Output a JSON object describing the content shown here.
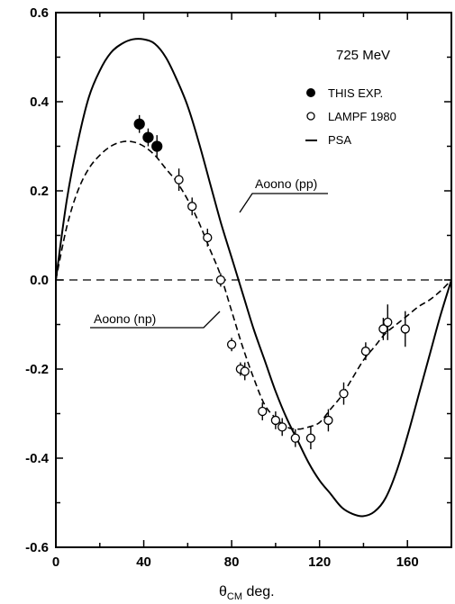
{
  "chart_data": {
    "type": "line",
    "title": "",
    "xlabel_main": "θ",
    "xlabel_sub": "CM",
    "xlabel_unit": "deg.",
    "ylabel": "",
    "xlim": [
      0,
      180
    ],
    "ylim": [
      -0.6,
      0.6
    ],
    "x_ticks": [
      {
        "value": 0,
        "label": "0"
      },
      {
        "value": 40,
        "label": "40"
      },
      {
        "value": 80,
        "label": "80"
      },
      {
        "value": 120,
        "label": "120"
      },
      {
        "value": 160,
        "label": "160"
      }
    ],
    "y_ticks": [
      {
        "value": 0.6,
        "label": "0.6"
      },
      {
        "value": 0.4,
        "label": "0.4"
      },
      {
        "value": 0.2,
        "label": "0.2"
      },
      {
        "value": 0.0,
        "label": "0.0"
      },
      {
        "value": -0.2,
        "label": "-0.2"
      },
      {
        "value": -0.4,
        "label": "-0.4"
      },
      {
        "value": -0.6,
        "label": "-0.6"
      }
    ],
    "legend": {
      "title": "725 MeV",
      "entries": [
        {
          "marker": "filled-circle",
          "label": "THIS EXP."
        },
        {
          "marker": "open-circle",
          "label": "LAMPF 1980"
        },
        {
          "marker": "line",
          "label": "PSA"
        }
      ]
    },
    "curve_labels": {
      "pp": "Aoono (pp)",
      "np": "Aoono (np)"
    },
    "series": [
      {
        "name": "PSA",
        "style": "solid",
        "x": [
          0,
          5,
          10,
          15,
          20,
          25,
          30,
          35,
          40,
          45,
          50,
          55,
          60,
          65,
          70,
          75,
          80,
          85,
          90,
          95,
          100,
          105,
          110,
          115,
          120,
          125,
          130,
          135,
          140,
          145,
          150,
          155,
          160,
          165,
          170,
          175,
          180
        ],
        "y": [
          0.0,
          0.18,
          0.31,
          0.41,
          0.47,
          0.51,
          0.53,
          0.54,
          0.54,
          0.53,
          0.5,
          0.45,
          0.39,
          0.31,
          0.22,
          0.13,
          0.05,
          -0.03,
          -0.11,
          -0.18,
          -0.25,
          -0.31,
          -0.36,
          -0.41,
          -0.45,
          -0.48,
          -0.51,
          -0.525,
          -0.53,
          -0.52,
          -0.49,
          -0.43,
          -0.35,
          -0.26,
          -0.17,
          -0.08,
          0.0
        ]
      },
      {
        "name": "",
        "style": "dashed",
        "x": [
          0,
          5,
          10,
          15,
          20,
          25,
          30,
          35,
          40,
          45,
          50,
          55,
          60,
          65,
          70,
          75,
          80,
          85,
          90,
          95,
          100,
          105,
          110,
          115,
          120,
          125,
          130,
          135,
          140,
          145,
          150,
          155,
          160,
          165,
          170,
          175,
          180
        ],
        "y": [
          0.0,
          0.12,
          0.2,
          0.25,
          0.28,
          0.3,
          0.31,
          0.31,
          0.3,
          0.28,
          0.25,
          0.22,
          0.18,
          0.13,
          0.07,
          0.01,
          -0.07,
          -0.15,
          -0.22,
          -0.28,
          -0.31,
          -0.33,
          -0.335,
          -0.33,
          -0.32,
          -0.29,
          -0.26,
          -0.22,
          -0.18,
          -0.15,
          -0.12,
          -0.1,
          -0.08,
          -0.06,
          -0.045,
          -0.025,
          0.0
        ]
      },
      {
        "name": "THIS EXP.",
        "style": "filled-markers",
        "points": [
          {
            "x": 38,
            "y": 0.35,
            "err": 0.02
          },
          {
            "x": 42,
            "y": 0.32,
            "err": 0.02
          },
          {
            "x": 46,
            "y": 0.3,
            "err": 0.025
          }
        ]
      },
      {
        "name": "LAMPF 1980",
        "style": "open-markers",
        "points": [
          {
            "x": 56,
            "y": 0.225,
            "err": 0.025
          },
          {
            "x": 62,
            "y": 0.165,
            "err": 0.02
          },
          {
            "x": 69,
            "y": 0.095,
            "err": 0.02
          },
          {
            "x": 75,
            "y": 0.0,
            "err": 0.015
          },
          {
            "x": 80,
            "y": -0.145,
            "err": 0.015
          },
          {
            "x": 84,
            "y": -0.2,
            "err": 0.015
          },
          {
            "x": 86,
            "y": -0.205,
            "err": 0.02
          },
          {
            "x": 94,
            "y": -0.295,
            "err": 0.02
          },
          {
            "x": 100,
            "y": -0.315,
            "err": 0.02
          },
          {
            "x": 103,
            "y": -0.33,
            "err": 0.02
          },
          {
            "x": 109,
            "y": -0.355,
            "err": 0.02
          },
          {
            "x": 116,
            "y": -0.355,
            "err": 0.025
          },
          {
            "x": 124,
            "y": -0.315,
            "err": 0.025
          },
          {
            "x": 131,
            "y": -0.255,
            "err": 0.025
          },
          {
            "x": 141,
            "y": -0.16,
            "err": 0.02
          },
          {
            "x": 149,
            "y": -0.11,
            "err": 0.025
          },
          {
            "x": 151,
            "y": -0.095,
            "err": 0.04
          },
          {
            "x": 159,
            "y": -0.11,
            "err": 0.04
          }
        ]
      }
    ]
  }
}
